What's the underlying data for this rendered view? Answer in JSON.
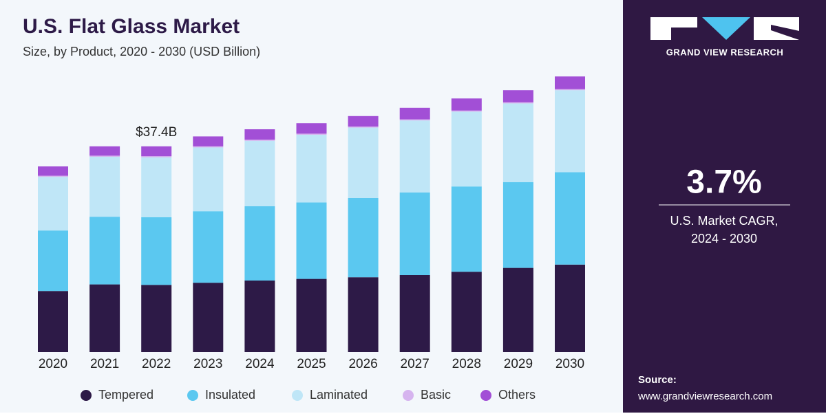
{
  "chart_data": {
    "type": "stacked_bar",
    "title": "U.S. Flat Glass Market",
    "subtitle": "Size, by Product, 2020 - 2030 (USD Billion)",
    "categories": [
      "2020",
      "2021",
      "2022",
      "2023",
      "2024",
      "2025",
      "2026",
      "2027",
      "2028",
      "2029",
      "2030"
    ],
    "series": [
      {
        "name": "Tempered",
        "color": "#2d1a47",
        "values": [
          11.1,
          12.3,
          12.2,
          12.6,
          13.0,
          13.3,
          13.6,
          14.0,
          14.6,
          15.3,
          15.9
        ]
      },
      {
        "name": "Insulated",
        "color": "#5bc8f0",
        "values": [
          11.0,
          12.3,
          12.3,
          13.0,
          13.5,
          13.9,
          14.4,
          15.0,
          15.5,
          15.6,
          16.8
        ]
      },
      {
        "name": "Laminated",
        "color": "#bfe6f7",
        "values": [
          9.75,
          10.9,
          10.9,
          11.6,
          11.9,
          12.3,
          12.8,
          13.1,
          13.6,
          14.3,
          14.9
        ]
      },
      {
        "name": "Basic",
        "color": "#d6b4ef",
        "values": [
          0.2,
          0.2,
          0.2,
          0.2,
          0.2,
          0.2,
          0.2,
          0.2,
          0.2,
          0.2,
          0.2
        ]
      },
      {
        "name": "Others",
        "color": "#a24fd6",
        "values": [
          1.7,
          1.7,
          1.8,
          1.8,
          1.9,
          1.9,
          1.9,
          2.1,
          2.2,
          2.2,
          2.3
        ]
      }
    ],
    "annotations": [
      {
        "category": "2022",
        "text": "$37.4B"
      }
    ],
    "legend": "bottom"
  },
  "side_panel": {
    "brand": "GRAND VIEW RESEARCH",
    "cagr": "3.7%",
    "cagr_label": "U.S. Market CAGR,",
    "cagr_period": "2024 - 2030",
    "source_label": "Source:",
    "source_url": "www.grandviewresearch.com"
  }
}
